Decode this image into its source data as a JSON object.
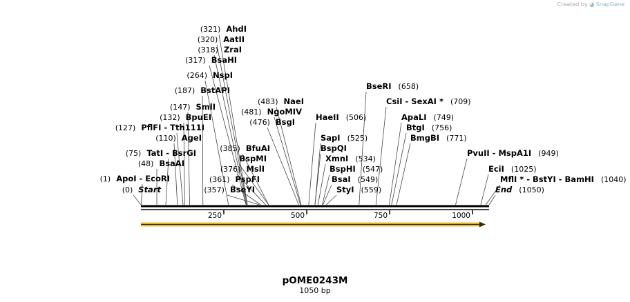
{
  "credit": {
    "prefix": "Created by",
    "brand": "SnapGene"
  },
  "plasmid": {
    "name": "pOME0243M",
    "length_label": "1050 bp",
    "length": 1050
  },
  "axis_ticks": [
    250,
    500,
    750,
    1000
  ],
  "sites": [
    {
      "pos": "(321)",
      "name": "AhdI",
      "loc": 321,
      "row": 0
    },
    {
      "pos": "(320)",
      "name": "AatII",
      "loc": 320,
      "row": 1
    },
    {
      "pos": "(318)",
      "name": "ZraI",
      "loc": 318,
      "row": 2
    },
    {
      "pos": "(317)",
      "name": "BsaHI",
      "loc": 317,
      "row": 3
    },
    {
      "pos": "(264)",
      "name": "NspI",
      "loc": 264,
      "row": 4
    },
    {
      "pos": "(187)",
      "name": "BstAPI",
      "loc": 187,
      "row": 5
    },
    {
      "pos": "(147)",
      "name": "SmlI",
      "loc": 147,
      "row": 6
    },
    {
      "pos": "(132)",
      "name": "BpuEI",
      "loc": 132,
      "row": 7
    },
    {
      "pos": "(127)",
      "name": "PflFI - Tth111I",
      "loc": 127,
      "row": 8
    },
    {
      "pos": "(110)",
      "name": "AgeI",
      "loc": 110,
      "row": 9
    },
    {
      "pos": "(75)",
      "name": "TatI - BsrGI",
      "loc": 75,
      "row": 10
    },
    {
      "pos": "(48)",
      "name": "BsaAI",
      "loc": 48,
      "row": 11
    },
    {
      "pos": "(1)",
      "name": "ApoI - EcoRI",
      "loc": 1,
      "row": 12
    },
    {
      "pos": "(0)",
      "name": "Start",
      "loc": 0,
      "row": 13,
      "italic": true
    },
    {
      "pos": "(483)",
      "name": "NaeI",
      "loc": 483,
      "row": 14
    },
    {
      "pos": "(481)",
      "name": "NgoMIV",
      "loc": 481,
      "row": 15
    },
    {
      "pos": "(476)",
      "name": "BsgI",
      "loc": 476,
      "row": 16
    },
    {
      "pos": "(385)",
      "name": "BfuAI",
      "loc": 385,
      "row": 17
    },
    {
      "pos": "",
      "name": "BspMI",
      "loc": 385,
      "row": 18
    },
    {
      "pos": "(376)",
      "name": "MslI",
      "loc": 376,
      "row": 19
    },
    {
      "pos": "(361)",
      "name": "PspFI",
      "loc": 361,
      "row": 20
    },
    {
      "pos": "(357)",
      "name": "BseYI",
      "loc": 357,
      "row": 21
    },
    {
      "pos": "(506)",
      "name": "HaeII",
      "loc": 506,
      "row": 22,
      "after": true
    },
    {
      "pos": "(525)",
      "name": "SapI",
      "loc": 525,
      "row": 23,
      "after": true
    },
    {
      "pos": "",
      "name": "BspQI",
      "loc": 525,
      "row": 24,
      "after": true
    },
    {
      "pos": "(534)",
      "name": "XmnI",
      "loc": 534,
      "row": 25,
      "after": true
    },
    {
      "pos": "(547)",
      "name": "BspHI",
      "loc": 547,
      "row": 26,
      "after": true
    },
    {
      "pos": "(549)",
      "name": "BsaI",
      "loc": 549,
      "row": 27,
      "after": true
    },
    {
      "pos": "(559)",
      "name": "StyI",
      "loc": 559,
      "row": 28,
      "after": true
    },
    {
      "pos": "(658)",
      "name": "BseRI",
      "loc": 658,
      "row": 29,
      "after": true
    },
    {
      "pos": "(709)",
      "name": "CsiI - SexAI *",
      "loc": 709,
      "row": 30,
      "after": true
    },
    {
      "pos": "(749)",
      "name": "ApaLI",
      "loc": 749,
      "row": 31,
      "after": true
    },
    {
      "pos": "(756)",
      "name": "BtgI",
      "loc": 756,
      "row": 32,
      "after": true
    },
    {
      "pos": "(771)",
      "name": "BmgBI",
      "loc": 771,
      "row": 33,
      "after": true
    },
    {
      "pos": "(949)",
      "name": "PvuII - MspA1I",
      "loc": 949,
      "row": 34,
      "after": true
    },
    {
      "pos": "(1025)",
      "name": "EciI",
      "loc": 1025,
      "row": 35,
      "after": true
    },
    {
      "pos": "(1040)",
      "name": "MflI * - BstYI - BamHI",
      "loc": 1040,
      "row": 36,
      "after": true
    },
    {
      "pos": "(1050)",
      "name": "End",
      "loc": 1050,
      "row": 37,
      "after": true,
      "italic": true
    }
  ]
}
